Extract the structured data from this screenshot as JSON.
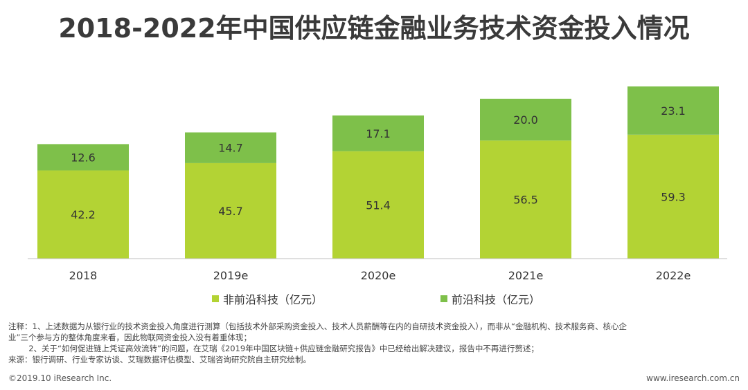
{
  "title": "2018-2022年中国供应链金融业务技术资金投入情况",
  "chart_data": {
    "type": "bar",
    "stacked": true,
    "categories": [
      "2018",
      "2019e",
      "2020e",
      "2021e",
      "2022e"
    ],
    "series": [
      {
        "name": "非前沿科技（亿元）",
        "color": "#b3d334",
        "values": [
          42.2,
          45.7,
          51.4,
          56.5,
          59.3
        ]
      },
      {
        "name": "前沿科技（亿元）",
        "color": "#7ec04a",
        "values": [
          12.6,
          14.7,
          17.1,
          20.0,
          23.1
        ]
      }
    ],
    "ylim": [
      0,
      90
    ],
    "grid": false,
    "legend": "bottom"
  },
  "notes": [
    "注释：1、上述数据为从银行业的技术资金投入角度进行测算（包括技术外部采购资金投入、技术人员薪酬等在内的自研技术资金投入），而非从“金融机构、技术服务商、核心企",
    "业”三个参与方的整体角度来看，因此物联网资金投入没有着重体现；",
    "        2、关于“如何促进链上凭证高效流转”的问题，在艾瑞《2019年中国区块链+供应链金融研究报告》中已经给出解决建议，报告中不再进行赘述；",
    "来源：银行调研、行业专家访谈、艾瑞数据评估模型、艾瑞咨询研究院自主研究绘制。"
  ],
  "footer": {
    "copyright": "©2019.10 iResearch Inc.",
    "website": "www.iresearch.com.cn"
  }
}
